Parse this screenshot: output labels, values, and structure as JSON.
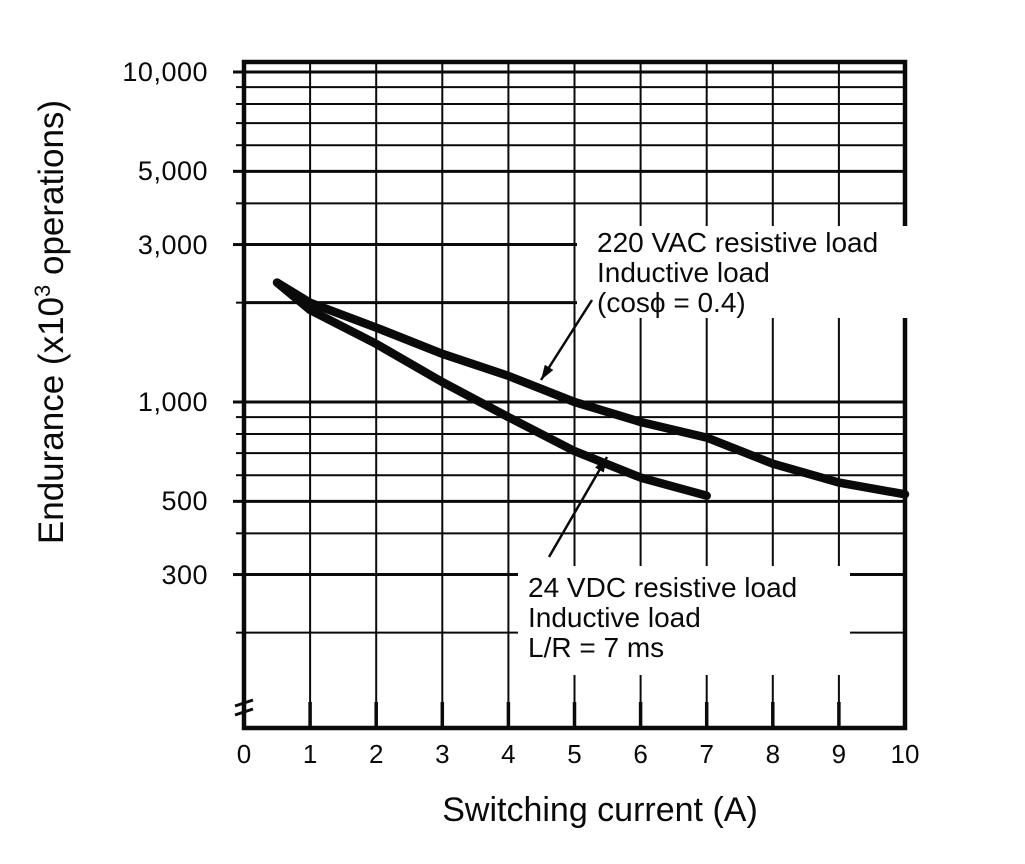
{
  "chart_data": {
    "type": "line",
    "title": "",
    "xlabel": "Switching current (A)",
    "ylabel": "Endurance (x10^3 operations)",
    "ylabel_prefix": "Endurance (x10",
    "ylabel_sup": "3",
    "ylabel_suffix": " operations)",
    "x_axis": {
      "min": 0,
      "max": 10,
      "ticks": [
        "0",
        "1",
        "2",
        "3",
        "4",
        "5",
        "6",
        "7",
        "8",
        "9",
        "10"
      ]
    },
    "y_axis": {
      "scale": "log",
      "bottom_value": 100,
      "top_value": 10700,
      "axis_break_at_bottom": true,
      "tick_labels": [
        {
          "value": 10000,
          "label": "10,000"
        },
        {
          "value": 5000,
          "label": "5,000"
        },
        {
          "value": 3000,
          "label": "3,000"
        },
        {
          "value": 1000,
          "label": "1,000"
        },
        {
          "value": 500,
          "label": "500"
        },
        {
          "value": 300,
          "label": "300"
        }
      ],
      "gridlines": [
        10000,
        9000,
        8000,
        7000,
        6000,
        5000,
        4000,
        3000,
        2000,
        1000,
        900,
        800,
        700,
        600,
        500,
        400,
        300,
        200
      ],
      "major_gridlines": [
        10000,
        5000,
        3000,
        2000,
        1000,
        500,
        300
      ]
    },
    "series": [
      {
        "name": "220 VAC resistive load / Inductive load (cosϕ = 0.4)",
        "x": [
          0.5,
          1,
          2,
          3,
          4,
          5,
          6,
          7,
          8,
          9,
          10
        ],
        "y": [
          2300,
          2000,
          1680,
          1400,
          1200,
          1000,
          870,
          780,
          650,
          570,
          525
        ]
      },
      {
        "name": "24 VDC resistive load / Inductive load L/R = 7 ms",
        "x": [
          0.5,
          1,
          2,
          3,
          4,
          5,
          6,
          7
        ],
        "y": [
          2300,
          1900,
          1500,
          1150,
          900,
          710,
          590,
          520
        ]
      }
    ],
    "annotations": [
      {
        "lines": [
          "220 VAC resistive load",
          "Inductive load",
          "(cosϕ = 0.4)"
        ]
      },
      {
        "lines": [
          "24 VDC resistive load",
          "Inductive load",
          "L/R = 7 ms"
        ]
      }
    ],
    "colors": {
      "ink": "#0a0a0a",
      "background": "#ffffff"
    },
    "legend_position": "none",
    "grid": true
  }
}
